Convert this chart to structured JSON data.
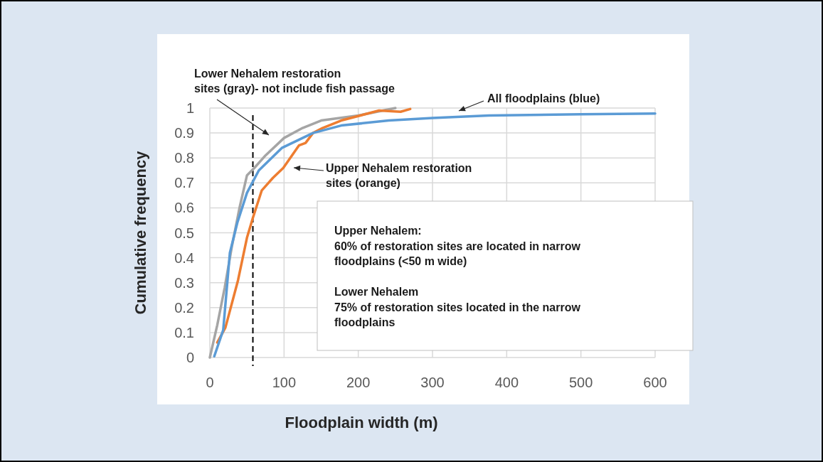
{
  "chart_data": {
    "type": "line",
    "xlabel": "Floodplain width (m)",
    "ylabel": "Cumulative frequency",
    "xlim": [
      0,
      600
    ],
    "xticks": [
      0,
      100,
      200,
      300,
      400,
      500,
      600
    ],
    "ylim": [
      0,
      1
    ],
    "yticks": [
      0,
      0.1,
      0.2,
      0.3,
      0.4,
      0.5,
      0.6,
      0.7,
      0.8,
      0.9,
      1
    ],
    "grid": true,
    "marker": "none",
    "line_style": "solid",
    "series": [
      {
        "color": "#a5a5a5",
        "x": [
          0,
          10,
          20,
          30,
          40,
          50,
          60,
          75,
          100,
          125,
          150,
          200,
          250
        ],
        "values": [
          0,
          0.13,
          0.28,
          0.45,
          0.6,
          0.73,
          0.76,
          0.81,
          0.88,
          0.92,
          0.95,
          0.97,
          1.0
        ]
      },
      {
        "color": "#ed7d31",
        "x": [
          10,
          21,
          38,
          50,
          58,
          70,
          85,
          99,
          120,
          129,
          139,
          152,
          177,
          209,
          228,
          257,
          270
        ],
        "values": [
          0.06,
          0.12,
          0.31,
          0.48,
          0.56,
          0.67,
          0.72,
          0.76,
          0.85,
          0.86,
          0.9,
          0.92,
          0.95,
          0.975,
          0.99,
          0.985,
          0.996
        ]
      },
      {
        "color": "#5b9bd5",
        "x": [
          6,
          18,
          27,
          37,
          50,
          66,
          97,
          139,
          177,
          241,
          300,
          376,
          500,
          600
        ],
        "values": [
          0.005,
          0.11,
          0.42,
          0.54,
          0.66,
          0.75,
          0.84,
          0.9,
          0.93,
          0.95,
          0.96,
          0.97,
          0.975,
          0.978
        ]
      }
    ],
    "ref_lines": [
      {
        "axis": "x",
        "value": 58,
        "color": "#000000",
        "line_style": "dashed"
      }
    ],
    "annotations": [
      "Lower Nehalem restoration\nsites (gray)- not include fish passage",
      "Upper Nehalem restoration\nsites (orange)",
      "All floodplains (blue)",
      "Upper Nehalem:\n60% of restoration sites are located in narrow\nfloodplains (<50 m wide)\n\nLower Nehalem\n75% of restoration sites located in the narrow\nfloodplains"
    ]
  }
}
